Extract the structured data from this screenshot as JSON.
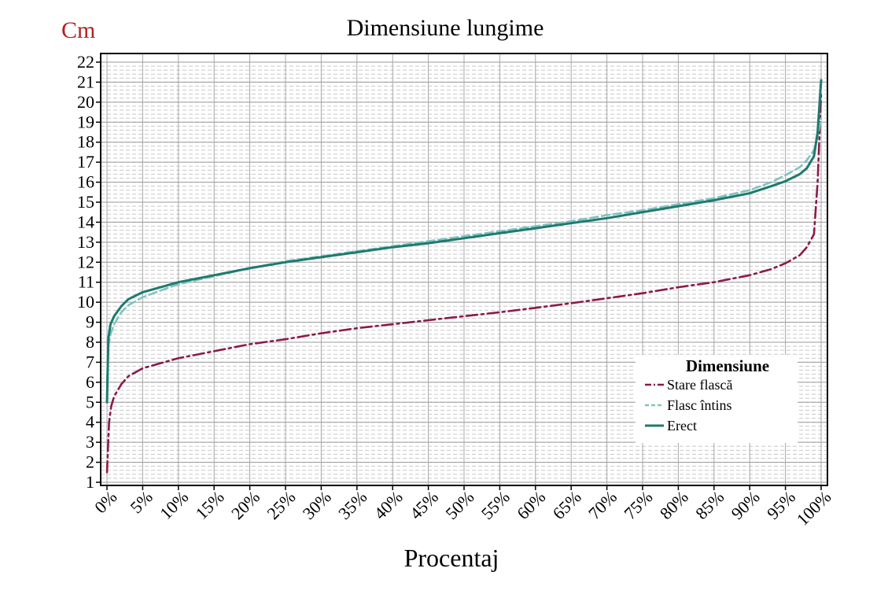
{
  "chart_data": {
    "type": "line",
    "title": "Dimensiune lungime",
    "ylabel": "Cm",
    "xlabel": "Procentaj",
    "ylim": [
      1,
      22
    ],
    "xlim": [
      0,
      100
    ],
    "yticks": [
      1,
      2,
      3,
      4,
      5,
      6,
      7,
      8,
      9,
      10,
      11,
      12,
      13,
      14,
      15,
      16,
      17,
      18,
      19,
      20,
      21,
      22
    ],
    "xticks": [
      0,
      5,
      10,
      15,
      20,
      25,
      30,
      35,
      40,
      45,
      50,
      55,
      60,
      65,
      70,
      75,
      80,
      85,
      90,
      95,
      100
    ],
    "xtick_labels": [
      "0%",
      "5%",
      "10%",
      "15%",
      "20%",
      "25%",
      "30%",
      "35%",
      "40%",
      "45%",
      "50%",
      "55%",
      "60%",
      "65%",
      "70%",
      "75%",
      "80%",
      "85%",
      "90%",
      "95%",
      "100%"
    ],
    "grid": true,
    "legend": {
      "title": "Dimensiune",
      "placement": "bottom-right"
    },
    "colors": {
      "flasca": "#8b1a4a",
      "flasc_intins": "#7fc4c0",
      "erect": "#1e7a6e",
      "ylabel": "#b22222"
    },
    "series": [
      {
        "name": "Stare flască",
        "style": "dash-dot",
        "x": [
          0,
          0.3,
          0.6,
          1,
          2,
          3,
          5,
          8,
          10,
          15,
          20,
          25,
          30,
          35,
          40,
          45,
          50,
          55,
          60,
          65,
          70,
          75,
          80,
          85,
          90,
          93,
          95,
          97,
          98,
          99,
          99.5,
          100
        ],
        "values": [
          1.5,
          4.0,
          4.8,
          5.3,
          5.9,
          6.3,
          6.7,
          7.0,
          7.2,
          7.55,
          7.9,
          8.15,
          8.45,
          8.7,
          8.9,
          9.1,
          9.3,
          9.5,
          9.72,
          9.95,
          10.2,
          10.45,
          10.75,
          11.0,
          11.35,
          11.65,
          11.95,
          12.35,
          12.75,
          13.4,
          16.0,
          20.5
        ]
      },
      {
        "name": "Flasc întins",
        "style": "dashed",
        "x": [
          0,
          0.2,
          0.5,
          1,
          2,
          3,
          5,
          8,
          10,
          15,
          20,
          25,
          30,
          35,
          40,
          45,
          50,
          55,
          60,
          65,
          70,
          75,
          80,
          85,
          90,
          93,
          95,
          97,
          98,
          99,
          99.5,
          100
        ],
        "values": [
          6.0,
          7.8,
          8.4,
          8.9,
          9.5,
          9.85,
          10.25,
          10.65,
          10.9,
          11.3,
          11.7,
          12.05,
          12.3,
          12.55,
          12.8,
          13.05,
          13.3,
          13.55,
          13.8,
          14.05,
          14.35,
          14.6,
          14.9,
          15.2,
          15.6,
          16.0,
          16.35,
          16.75,
          17.1,
          17.6,
          18.3,
          19.2
        ]
      },
      {
        "name": "Erect",
        "style": "solid",
        "x": [
          0,
          0.2,
          0.5,
          1,
          2,
          3,
          5,
          8,
          10,
          15,
          20,
          25,
          30,
          35,
          40,
          45,
          50,
          55,
          60,
          65,
          70,
          75,
          80,
          85,
          90,
          93,
          95,
          97,
          98,
          99,
          99.5,
          100
        ],
        "values": [
          5.0,
          8.2,
          8.9,
          9.3,
          9.8,
          10.15,
          10.5,
          10.8,
          11.0,
          11.35,
          11.7,
          12.0,
          12.25,
          12.5,
          12.75,
          12.95,
          13.2,
          13.45,
          13.7,
          13.95,
          14.2,
          14.5,
          14.8,
          15.1,
          15.45,
          15.8,
          16.05,
          16.4,
          16.7,
          17.3,
          18.5,
          21.1
        ]
      }
    ]
  }
}
